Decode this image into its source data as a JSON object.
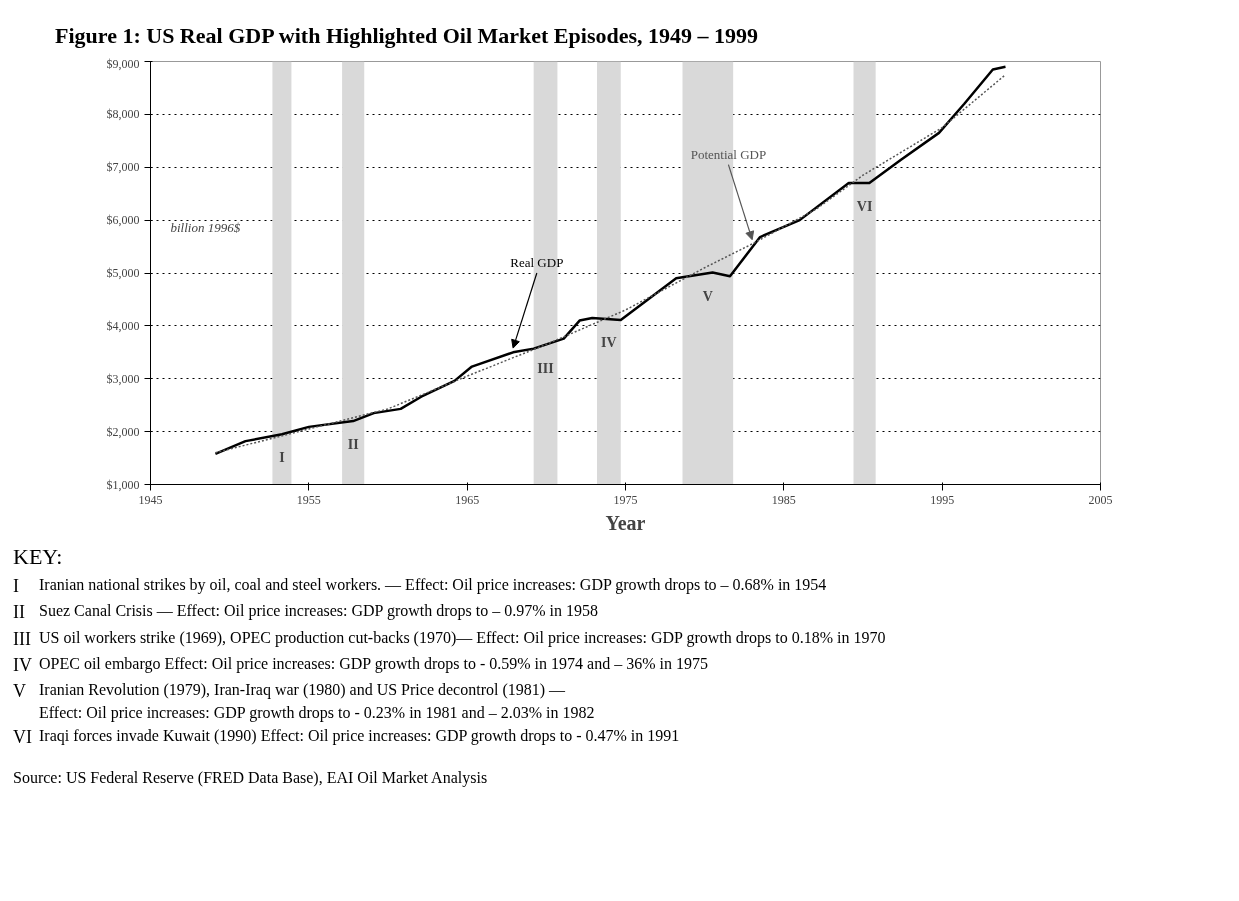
{
  "chart_data": {
    "type": "line",
    "title": "Figure 1:  US Real GDP with Highlighted Oil Market Episodes, 1949 – 1999",
    "xlabel": "Year",
    "ylabel": "billion 1996$",
    "series": [
      {
        "name": "Real GDP",
        "color": "#000000",
        "line_style": "solid",
        "x": [
          1949.1,
          1951.0,
          1953.3,
          1955.0,
          1957.8,
          1959.1,
          1960.8,
          1962.1,
          1964.2,
          1965.3,
          1967.9,
          1969.2,
          1971.1,
          1972.1,
          1972.9,
          1974.7,
          1978.2,
          1980.5,
          1981.6,
          1983.5,
          1986.0,
          1989.1,
          1990.4,
          1992.4,
          1994.8,
          1996.4,
          1998.2,
          1999.0
        ],
        "values": [
          1580,
          1820,
          1950,
          2090,
          2200,
          2350,
          2430,
          2660,
          2960,
          3230,
          3500,
          3570,
          3760,
          4100,
          4150,
          4110,
          4900,
          5010,
          4940,
          5680,
          6000,
          6700,
          6700,
          7140,
          7650,
          8200,
          8850,
          8900
        ]
      },
      {
        "name": "Potential GDP",
        "color": "#555555",
        "line_style": "dotted",
        "x": [
          1949.1,
          1955.0,
          1960.0,
          1965.0,
          1970.0,
          1975.0,
          1980.0,
          1983.0,
          1987.0,
          1990.0,
          1995.0,
          1999.0
        ],
        "values": [
          1600,
          2050,
          2430,
          3050,
          3650,
          4300,
          5100,
          5550,
          6200,
          6850,
          7750,
          8750
        ]
      }
    ],
    "xlim": [
      1945,
      2005
    ],
    "xticks": [
      1945,
      1955,
      1965,
      1975,
      1985,
      1995,
      2005
    ],
    "ylim": [
      1000,
      9000
    ],
    "yticks": [
      {
        "value": 1000,
        "label": "$1,000"
      },
      {
        "value": 2000,
        "label": "$2,000"
      },
      {
        "value": 3000,
        "label": "$3,000"
      },
      {
        "value": 4000,
        "label": "$4,000"
      },
      {
        "value": 5000,
        "label": "$5,000"
      },
      {
        "value": 6000,
        "label": "$6,000"
      },
      {
        "value": 7000,
        "label": "$7,000"
      },
      {
        "value": 8000,
        "label": "$8,000"
      },
      {
        "value": 9000,
        "label": "$9,000"
      }
    ],
    "grid": "y",
    "bands": [
      {
        "axis": "x",
        "from": 1952.7,
        "to": 1953.9,
        "color": "#d9d9d9",
        "label": "I"
      },
      {
        "axis": "x",
        "from": 1957.1,
        "to": 1958.5,
        "color": "#d9d9d9",
        "label": "II"
      },
      {
        "axis": "x",
        "from": 1969.2,
        "to": 1970.7,
        "color": "#d9d9d9",
        "label": "III"
      },
      {
        "axis": "x",
        "from": 1973.2,
        "to": 1974.7,
        "color": "#d9d9d9",
        "label": "IV"
      },
      {
        "axis": "x",
        "from": 1978.6,
        "to": 1981.8,
        "color": "#d9d9d9",
        "label": "V"
      },
      {
        "axis": "x",
        "from": 1989.4,
        "to": 1990.8,
        "color": "#d9d9d9",
        "label": "VI"
      }
    ],
    "annotations": [
      "KEY:",
      "I\tIranian national strikes by oil, coal and steel workers.  —  Effect: Oil price increases:  GDP growth drops to – 0.68% in 1954",
      "II\tSuez Canal Crisis  — Effect: Oil price increases: GDP growth drops to – 0.97% in 1958",
      "III\tUS oil workers strike (1969), OPEC production cut-backs (1970)— Effect: Oil price increases: GDP growth drops to 0.18% in 1970",
      "IV\tOPEC oil embargo Effect: Oil price increases: GDP growth drops to - 0.59% in 1974 and – 36% in 1975",
      "V\tIranian Revolution (1979), Iran-Iraq war (1980) and US Price decontrol (1981) —\nEffect: Oil price increases: GDP growth drops to - 0.23% in 1981 and – 2.03% in 1982",
      "VI\tIraqi forces invade Kuwait (1990) Effect: Oil price increases: GDP growth drops to - 0.47% in 1991",
      "Source: US Federal Reserve (FRED Data Base), EAI Oil Market Analysis"
    ]
  }
}
